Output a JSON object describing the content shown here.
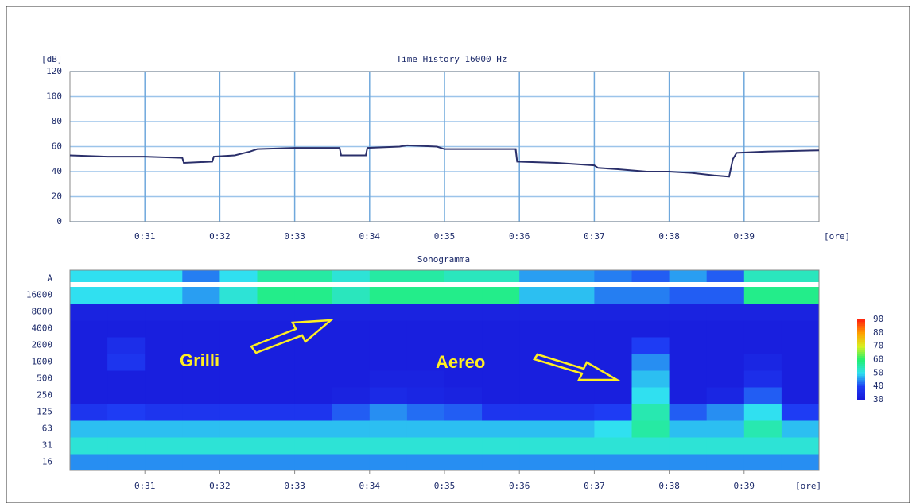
{
  "chart_data": [
    {
      "type": "line",
      "title": "Time History 16000 Hz",
      "y_label": "[dB]",
      "x_label": "[ore]",
      "color": "#2a2f6a",
      "grid": true,
      "x": [
        30,
        30.5,
        31,
        31.5,
        31.52,
        31.9,
        31.92,
        32.2,
        32.4,
        32.5,
        33,
        33.6,
        33.62,
        33.95,
        33.97,
        34.4,
        34.5,
        34.9,
        35,
        35.95,
        35.97,
        36.5,
        37,
        37.05,
        37.3,
        37.7,
        38,
        38.3,
        38.6,
        38.8,
        38.85,
        38.9,
        39.3,
        40
      ],
      "values": [
        53,
        52,
        52,
        51,
        47,
        48,
        52,
        53,
        56,
        58,
        59,
        59,
        53,
        53,
        59,
        60,
        61,
        60,
        58,
        58,
        48,
        47,
        45,
        43,
        42,
        40,
        40,
        39,
        37,
        36,
        50,
        55,
        56,
        57
      ],
      "xlim": [
        30,
        40
      ],
      "xticks": [
        {
          "value": 31,
          "label": "0:31"
        },
        {
          "value": 32,
          "label": "0:32"
        },
        {
          "value": 33,
          "label": "0:33"
        },
        {
          "value": 34,
          "label": "0:34"
        },
        {
          "value": 35,
          "label": "0:35"
        },
        {
          "value": 36,
          "label": "0:36"
        },
        {
          "value": 37,
          "label": "0:37"
        },
        {
          "value": 38,
          "label": "0:38"
        },
        {
          "value": 39,
          "label": "0:39"
        }
      ],
      "ylim": [
        0,
        120
      ],
      "yticks": [
        0,
        20,
        40,
        60,
        80,
        100,
        120
      ]
    },
    {
      "type": "heatmap",
      "title": "Sonogramma",
      "x_label": "[ore]",
      "rows": [
        "16",
        "31",
        "63",
        "125",
        "250",
        "500",
        "1000",
        "2000",
        "4000",
        "8000",
        "16000",
        "A"
      ],
      "bins": [
        30,
        30.5,
        31,
        31.5,
        32,
        32.5,
        33,
        33.5,
        34,
        34.5,
        35,
        35.5,
        36,
        36.5,
        37,
        37.5,
        38,
        38.5,
        39,
        39.5,
        40
      ],
      "values": [
        [
          45,
          45,
          45,
          45,
          45,
          45,
          45,
          45,
          45,
          45,
          45,
          45,
          45,
          45,
          45,
          45,
          45,
          45,
          45,
          45
        ],
        [
          52,
          52,
          52,
          52,
          52,
          52,
          52,
          52,
          52,
          52,
          52,
          52,
          52,
          52,
          52,
          52,
          52,
          52,
          52,
          52
        ],
        [
          48,
          48,
          48,
          48,
          48,
          48,
          48,
          48,
          48,
          48,
          48,
          48,
          48,
          48,
          50,
          56,
          48,
          48,
          55,
          48
        ],
        [
          38,
          40,
          38,
          38,
          38,
          38,
          38,
          42,
          45,
          43,
          42,
          38,
          38,
          38,
          40,
          55,
          42,
          45,
          50,
          40
        ],
        [
          32,
          32,
          32,
          32,
          32,
          32,
          32,
          33,
          35,
          34,
          33,
          32,
          32,
          32,
          32,
          50,
          32,
          34,
          42,
          32
        ],
        [
          32,
          32,
          32,
          32,
          32,
          32,
          32,
          32,
          33,
          33,
          32,
          32,
          32,
          32,
          32,
          48,
          32,
          32,
          36,
          32
        ],
        [
          32,
          38,
          32,
          32,
          32,
          32,
          32,
          32,
          32,
          32,
          32,
          32,
          32,
          32,
          32,
          45,
          32,
          32,
          34,
          32
        ],
        [
          32,
          36,
          32,
          32,
          32,
          32,
          32,
          32,
          32,
          32,
          32,
          32,
          32,
          32,
          32,
          40,
          32,
          32,
          32,
          32
        ],
        [
          32,
          32,
          32,
          32,
          32,
          32,
          32,
          32,
          32,
          32,
          32,
          32,
          32,
          32,
          32,
          32,
          32,
          32,
          32,
          32
        ],
        [
          33,
          33,
          33,
          33,
          33,
          33,
          33,
          33,
          33,
          33,
          33,
          33,
          33,
          33,
          33,
          33,
          33,
          33,
          33,
          33
        ],
        [
          50,
          50,
          50,
          46,
          52,
          58,
          58,
          54,
          58,
          58,
          58,
          58,
          48,
          48,
          44,
          44,
          42,
          42,
          58,
          58
        ],
        [
          50,
          50,
          50,
          44,
          50,
          56,
          56,
          52,
          56,
          56,
          54,
          54,
          46,
          46,
          44,
          42,
          46,
          42,
          54,
          54
        ]
      ],
      "xlim": [
        30,
        40
      ],
      "xticks": [
        {
          "value": 31,
          "label": "0:31"
        },
        {
          "value": 32,
          "label": "0:32"
        },
        {
          "value": 33,
          "label": "0:33"
        },
        {
          "value": 34,
          "label": "0:34"
        },
        {
          "value": 35,
          "label": "0:35"
        },
        {
          "value": 36,
          "label": "0:36"
        },
        {
          "value": 37,
          "label": "0:37"
        },
        {
          "value": 38,
          "label": "0:38"
        },
        {
          "value": 39,
          "label": "0:39"
        }
      ],
      "zlim": [
        30,
        90
      ],
      "zticks": [
        30,
        40,
        50,
        60,
        70,
        80,
        90
      ],
      "colormap": [
        "#1818d8",
        "#1e3cf4",
        "#30e0f0",
        "#20f070",
        "#d8f020",
        "#ffa000",
        "#ff2010"
      ],
      "annotations": [
        {
          "text": "Grilli"
        },
        {
          "text": "Aereo"
        }
      ]
    }
  ]
}
